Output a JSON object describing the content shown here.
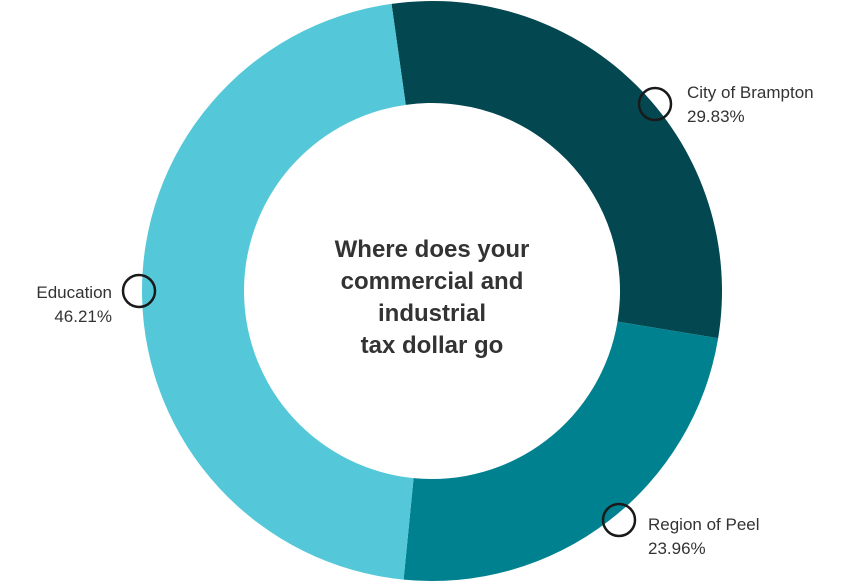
{
  "chart_data": {
    "type": "pie",
    "variant": "donut",
    "title_lines": [
      "Where does your",
      "commercial and industrial",
      "tax dollar go"
    ],
    "slices": [
      {
        "label": "City of Brampton",
        "value": 29.83,
        "value_text": "29.83%",
        "color": "#034751"
      },
      {
        "label": "Region of Peel",
        "value": 23.96,
        "value_text": "23.96%",
        "color": "#00818f"
      },
      {
        "label": "Education",
        "value": 46.21,
        "value_text": "46.21%",
        "color": "#54c8d8"
      }
    ],
    "start": "top, clockwise",
    "label_marker": "open circle"
  }
}
